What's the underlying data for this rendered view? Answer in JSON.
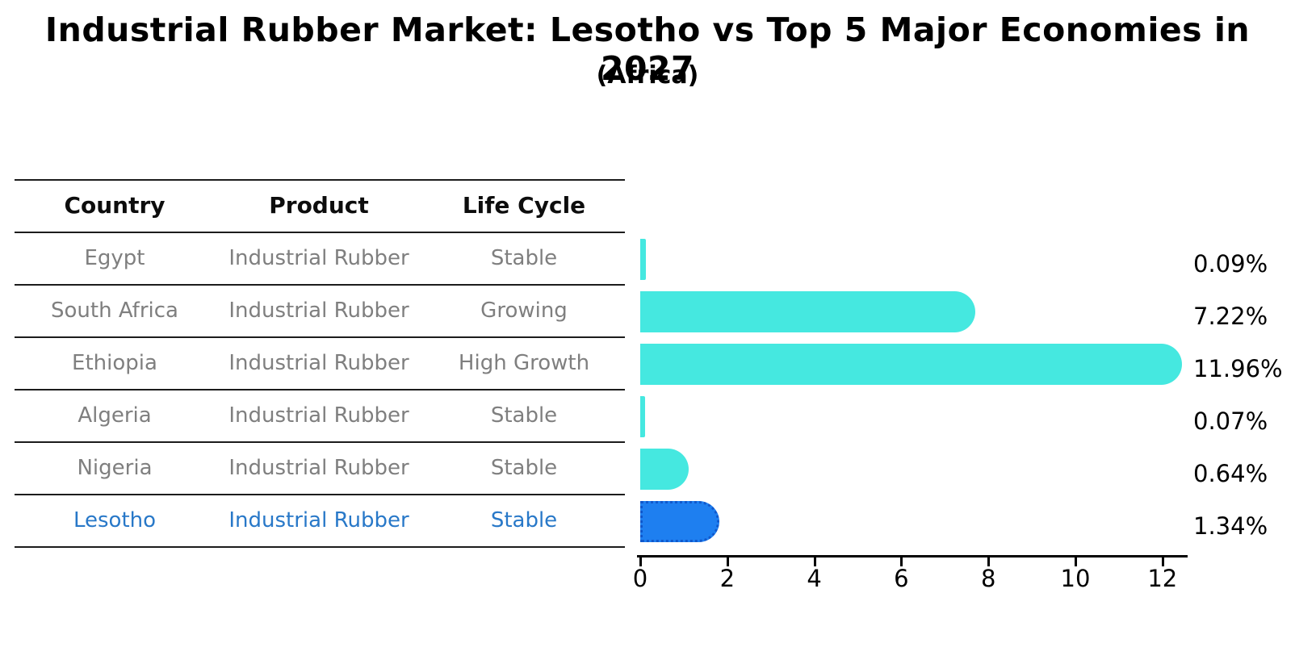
{
  "title": "Industrial Rubber Market: Lesotho vs Top 5 Major Economies in 2027",
  "subtitle": "(Africa)",
  "table": {
    "headers": [
      "Country",
      "Product",
      "Life Cycle"
    ],
    "rows": [
      {
        "country": "Egypt",
        "product": "Industrial Rubber",
        "life_cycle": "Stable",
        "highlight": false
      },
      {
        "country": "South Africa",
        "product": "Industrial Rubber",
        "life_cycle": "Growing",
        "highlight": false
      },
      {
        "country": "Ethiopia",
        "product": "Industrial Rubber",
        "life_cycle": "High Growth",
        "highlight": false
      },
      {
        "country": "Algeria",
        "product": "Industrial Rubber",
        "life_cycle": "Stable",
        "highlight": false
      },
      {
        "country": "Nigeria",
        "product": "Industrial Rubber",
        "life_cycle": "Stable",
        "highlight": false
      },
      {
        "country": "Lesotho",
        "product": "Industrial Rubber",
        "life_cycle": "Stable",
        "highlight": true
      }
    ]
  },
  "chart_data": {
    "type": "bar",
    "orientation": "horizontal",
    "title": "Industrial Rubber Market: Lesotho vs Top 5 Major Economies in 2027 (Africa)",
    "categories": [
      "Egypt",
      "South Africa",
      "Ethiopia",
      "Algeria",
      "Nigeria",
      "Lesotho"
    ],
    "values": [
      0.09,
      7.22,
      11.96,
      0.07,
      0.64,
      1.34
    ],
    "value_labels": [
      "0.09%",
      "7.22%",
      "11.96%",
      "0.07%",
      "0.64%",
      "1.34%"
    ],
    "x_ticks": [
      0,
      2,
      4,
      6,
      8,
      10,
      12
    ],
    "xlim": [
      0,
      12.6
    ],
    "grid": false,
    "legend": "none",
    "bar_colors": [
      "#45e8e0",
      "#45e8e0",
      "#45e8e0",
      "#45e8e0",
      "#45e8e0",
      "#1e7ff0"
    ],
    "highlight_index": 5,
    "highlight_border_color": "#1058cc"
  },
  "colors": {
    "bar_teal": "#45e8e0",
    "bar_blue": "#1e7ff0",
    "highlight_text": "#2878c8",
    "muted_text": "#7f7f7f",
    "axis": "#000000",
    "background": "#ffffff"
  }
}
